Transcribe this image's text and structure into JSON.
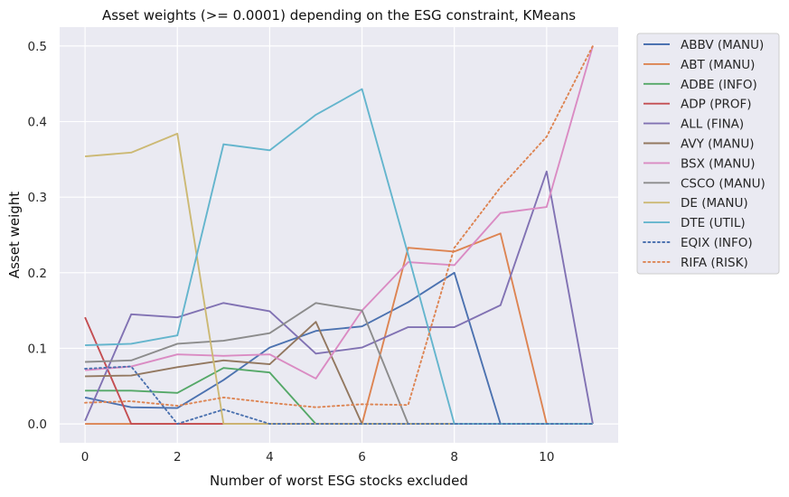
{
  "chart_data": {
    "type": "line",
    "title": "Asset weights (>= 0.0001) depending on the ESG constraint, KMeans",
    "xlabel": "Number of worst ESG stocks excluded",
    "ylabel": "Asset weight",
    "xlim": [
      -0.55,
      11.55
    ],
    "ylim": [
      -0.025,
      0.525
    ],
    "xticks": [
      0,
      2,
      4,
      6,
      8,
      10
    ],
    "yticks": [
      0.0,
      0.1,
      0.2,
      0.3,
      0.4,
      0.5
    ],
    "xtick_labels": [
      "0",
      "2",
      "4",
      "6",
      "8",
      "10"
    ],
    "ytick_labels": [
      "0.0",
      "0.1",
      "0.2",
      "0.3",
      "0.4",
      "0.5"
    ],
    "grid": true,
    "legend_position": "outside-right",
    "background": "#EAEAF2",
    "x": [
      0,
      1,
      2,
      3,
      4,
      5,
      6,
      7,
      8,
      9,
      10,
      11
    ],
    "series": [
      {
        "name": "ABBV (MANU)",
        "color": "#4C72B0",
        "style": "solid",
        "values": [
          0.035,
          0.022,
          0.021,
          0.058,
          0.101,
          0.123,
          0.129,
          0.161,
          0.2,
          0.0,
          0.0,
          0.0
        ]
      },
      {
        "name": "ABT (MANU)",
        "color": "#DD8452",
        "style": "solid",
        "values": [
          0.0,
          0.0,
          0.0,
          0.0,
          0.0,
          0.0,
          0.0,
          0.233,
          0.228,
          0.252,
          0.0,
          0.0
        ]
      },
      {
        "name": "ADBE (INFO)",
        "color": "#55A868",
        "style": "solid",
        "values": [
          0.044,
          0.044,
          0.041,
          0.074,
          0.068,
          0.0,
          0.0,
          0.0,
          0.0,
          0.0,
          0.0,
          0.0
        ]
      },
      {
        "name": "ADP (PROF)",
        "color": "#C44E52",
        "style": "solid",
        "values": [
          0.141,
          0.0,
          0.0,
          0.0,
          0.0,
          0.0,
          0.0,
          0.0,
          0.0,
          0.0,
          0.0,
          0.0
        ]
      },
      {
        "name": "ALL (FINA)",
        "color": "#8172B3",
        "style": "solid",
        "values": [
          0.004,
          0.145,
          0.141,
          0.16,
          0.149,
          0.093,
          0.101,
          0.128,
          0.128,
          0.157,
          0.334,
          0.0
        ]
      },
      {
        "name": "AVY (MANU)",
        "color": "#937860",
        "style": "solid",
        "values": [
          0.063,
          0.064,
          0.075,
          0.084,
          0.079,
          0.135,
          0.0,
          0.0,
          0.0,
          0.0,
          0.0,
          0.0
        ]
      },
      {
        "name": "BSX (MANU)",
        "color": "#DA8BC3",
        "style": "solid",
        "values": [
          0.071,
          0.076,
          0.092,
          0.09,
          0.092,
          0.06,
          0.15,
          0.214,
          0.21,
          0.279,
          0.287,
          0.5
        ]
      },
      {
        "name": "CSCO (MANU)",
        "color": "#8C8C8C",
        "style": "solid",
        "values": [
          0.082,
          0.084,
          0.106,
          0.11,
          0.12,
          0.16,
          0.15,
          0.0,
          0.0,
          0.0,
          0.0,
          0.0
        ]
      },
      {
        "name": "DE (MANU)",
        "color": "#CCB974",
        "style": "solid",
        "values": [
          0.354,
          0.359,
          0.384,
          0.0,
          0.0,
          0.0,
          0.0,
          0.0,
          0.0,
          0.0,
          0.0,
          0.0
        ]
      },
      {
        "name": "DTE (UTIL)",
        "color": "#64B5CD",
        "style": "solid",
        "values": [
          0.104,
          0.106,
          0.117,
          0.37,
          0.362,
          0.409,
          0.443,
          0.224,
          0.0,
          0.0,
          0.0,
          0.0
        ]
      },
      {
        "name": "EQIX (INFO)",
        "color": "#4C72B0",
        "style": "dotted",
        "values": [
          0.073,
          0.076,
          0.0,
          0.019,
          0.0,
          0.0,
          0.0,
          0.0,
          0.0,
          0.0,
          0.0,
          0.0
        ]
      },
      {
        "name": "RIFA (RISK)",
        "color": "#DD8452",
        "style": "dotted",
        "values": [
          0.028,
          0.03,
          0.024,
          0.035,
          0.028,
          0.022,
          0.026,
          0.025,
          0.233,
          0.313,
          0.38,
          0.5
        ]
      }
    ]
  }
}
